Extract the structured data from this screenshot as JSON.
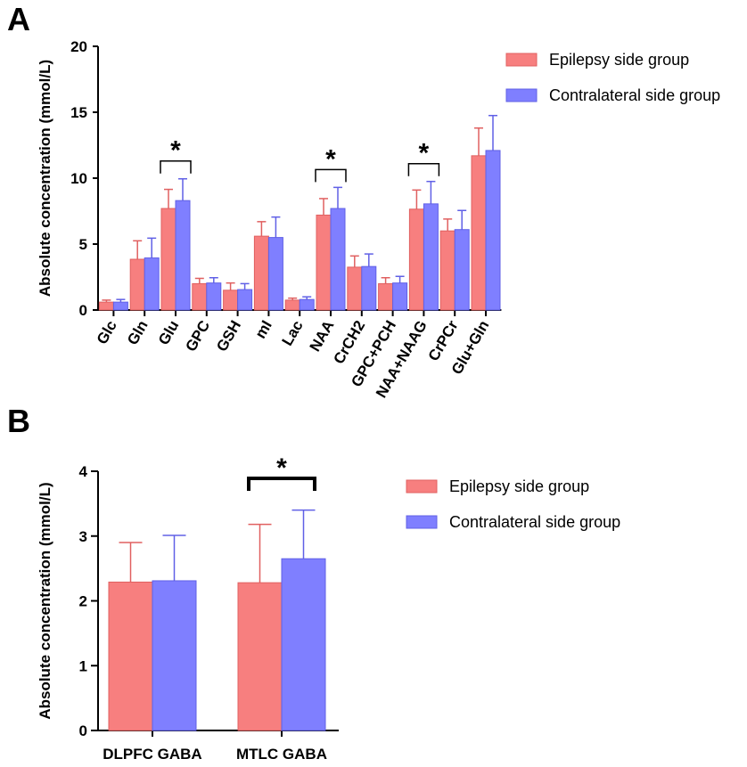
{
  "chart_data": [
    {
      "panel": "A",
      "type": "bar",
      "ylabel": "Absolute concentration (mmol/L)",
      "ylim": [
        0,
        20
      ],
      "yticks": [
        0,
        5,
        10,
        15,
        20
      ],
      "categories": [
        "Glc",
        "Gln",
        "Glu",
        "GPC",
        "GSH",
        "mI",
        "Lac",
        "NAA",
        "CrCH2",
        "GPC+PCH",
        "NAA+NAAG",
        "CrPCr",
        "Glu+Gln"
      ],
      "series": [
        {
          "name": "Epilepsy side group",
          "color": "#F77F7F",
          "edge": "#E06060",
          "values": [
            0.6,
            3.85,
            7.7,
            2.0,
            1.5,
            5.6,
            0.75,
            7.2,
            3.25,
            2.0,
            7.65,
            6.0,
            11.7
          ],
          "errors": [
            0.15,
            1.4,
            1.45,
            0.4,
            0.55,
            1.1,
            0.15,
            1.25,
            0.85,
            0.45,
            1.45,
            0.9,
            2.1
          ]
        },
        {
          "name": "Contralateral side group",
          "color": "#7F7FFF",
          "edge": "#6060E6",
          "values": [
            0.6,
            3.95,
            8.3,
            2.05,
            1.55,
            5.5,
            0.8,
            7.7,
            3.3,
            2.05,
            8.05,
            6.1,
            12.1
          ],
          "errors": [
            0.2,
            1.5,
            1.65,
            0.4,
            0.45,
            1.55,
            0.2,
            1.6,
            0.95,
            0.5,
            1.7,
            1.45,
            2.65
          ]
        }
      ],
      "significance": [
        {
          "category_index": 2,
          "label": "*"
        },
        {
          "category_index": 7,
          "label": "*"
        },
        {
          "category_index": 10,
          "label": "*"
        }
      ],
      "legend": [
        "Epilepsy side group",
        "Contralateral side group"
      ],
      "legend_position": "top-right"
    },
    {
      "panel": "B",
      "type": "bar",
      "ylabel": "Absolute concentration (mmol/L)",
      "ylim": [
        0,
        4
      ],
      "yticks": [
        0,
        1,
        2,
        3,
        4
      ],
      "categories": [
        "DLPFC GABA",
        "MTLC GABA"
      ],
      "series": [
        {
          "name": "Epilepsy side group",
          "color": "#F77F7F",
          "edge": "#E06060",
          "values": [
            2.29,
            2.28
          ],
          "errors": [
            0.61,
            0.9
          ]
        },
        {
          "name": "Contralateral side group",
          "color": "#7F7FFF",
          "edge": "#6060E6",
          "values": [
            2.31,
            2.65
          ],
          "errors": [
            0.7,
            0.75
          ]
        }
      ],
      "significance": [
        {
          "category_index": 1,
          "label": "*"
        }
      ],
      "legend": [
        "Epilepsy side group",
        "Contralateral side group"
      ],
      "legend_position": "right"
    }
  ],
  "panels": {
    "a": "A",
    "b": "B"
  }
}
